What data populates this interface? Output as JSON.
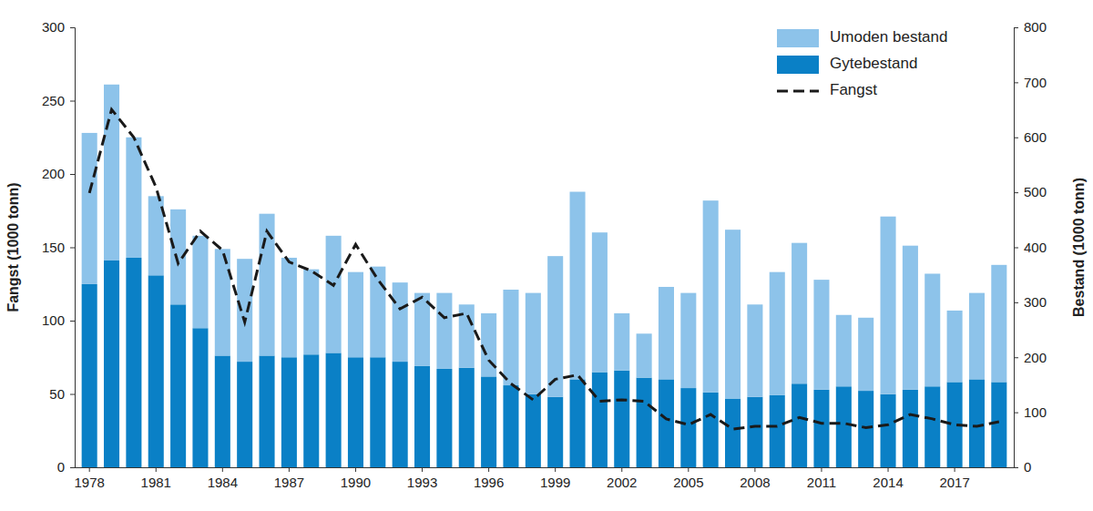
{
  "chart_data": {
    "type": "bar",
    "categories": [
      1978,
      null,
      null,
      1981,
      null,
      null,
      1984,
      null,
      null,
      1987,
      null,
      null,
      1990,
      null,
      null,
      1993,
      null,
      null,
      1996,
      null,
      null,
      1999,
      null,
      null,
      2002,
      null,
      null,
      2005,
      null,
      null,
      2008,
      null,
      null,
      2011,
      null,
      null,
      2014,
      null,
      null,
      2017,
      null,
      null
    ],
    "series": [
      {
        "name": "Umoden bestand",
        "type": "bar",
        "axis": "y2",
        "color": "#8dc3ea",
        "values": [
          275,
          320,
          219,
          144,
          173,
          168,
          194,
          187,
          258,
          181,
          155,
          213,
          155,
          165,
          144,
          133,
          138,
          115,
          115,
          174,
          184,
          256,
          341,
          254,
          104,
          80,
          168,
          173,
          349,
          307,
          168,
          224,
          256,
          200,
          130,
          133,
          323,
          262,
          205,
          130,
          157,
          213
        ]
      },
      {
        "name": "Gytebestand",
        "type": "bar",
        "axis": "y2",
        "color": "#0a80c6",
        "values": [
          333,
          376,
          381,
          349,
          296,
          253,
          203,
          192,
          203,
          200,
          205,
          208,
          200,
          200,
          192,
          184,
          179,
          181,
          165,
          149,
          133,
          128,
          160,
          173,
          176,
          163,
          160,
          144,
          136,
          125,
          128,
          131,
          152,
          141,
          147,
          139,
          133,
          141,
          147,
          155,
          160,
          155
        ]
      },
      {
        "name": "Fangst",
        "type": "line",
        "color": "#1a1a1a",
        "line_style": "dashed",
        "values": [
          187,
          244,
          225,
          191,
          139,
          161,
          148,
          99,
          161,
          140,
          134,
          124,
          152,
          128,
          108,
          116,
          102,
          105,
          73,
          57,
          46,
          60,
          63,
          45,
          46,
          45,
          33,
          29,
          36,
          26,
          28,
          28,
          34,
          30,
          30,
          27,
          29,
          36,
          33,
          29,
          28,
          31
        ]
      }
    ],
    "y_label": "Fangst (1000 tonn)",
    "y2_label": "Bestand (1000 tonn)",
    "ylim": [
      0,
      300
    ],
    "yticks": [
      0,
      50,
      100,
      150,
      200,
      250,
      300
    ],
    "y2lim": [
      0,
      800
    ],
    "y2ticks": [
      0,
      100,
      200,
      300,
      400,
      500,
      600,
      700,
      800
    ],
    "stacked": true,
    "grid": false,
    "legend": "top-right"
  }
}
